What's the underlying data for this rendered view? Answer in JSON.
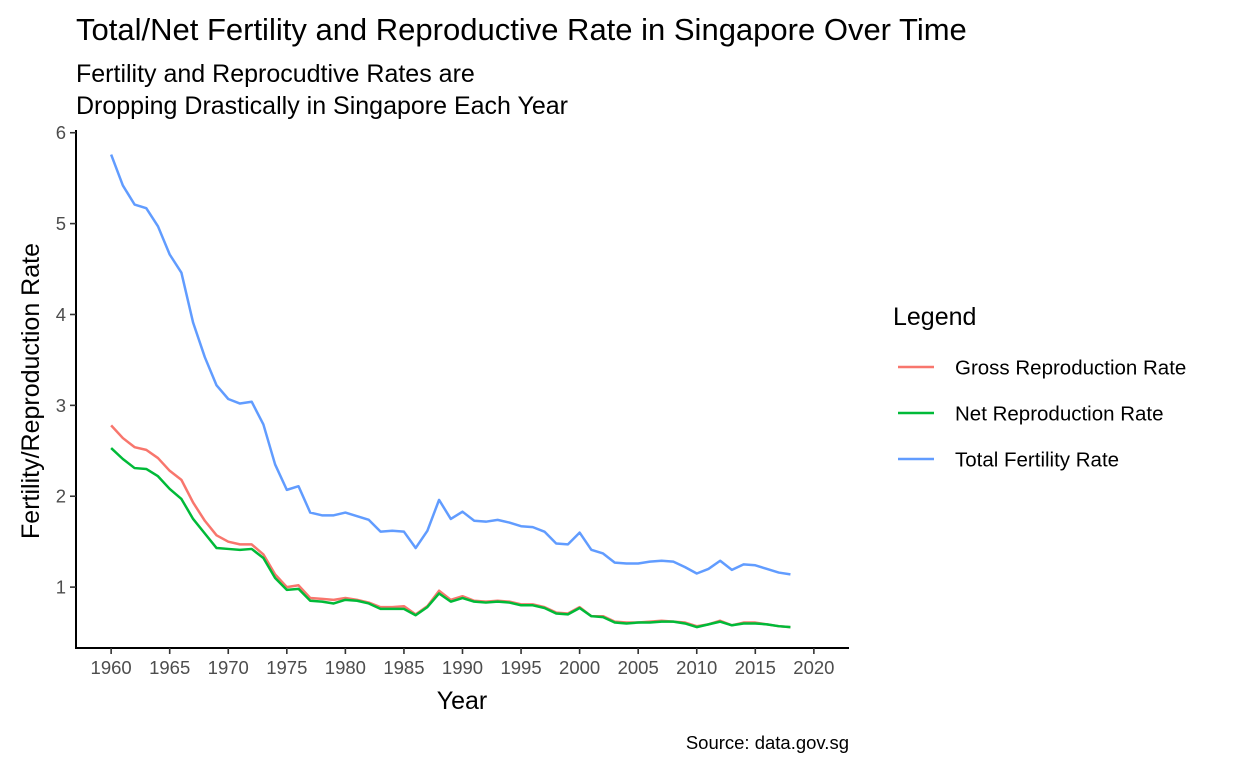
{
  "chart_data": {
    "type": "line",
    "title": "Total/Net Fertility and Reproductive Rate in Singapore Over Time",
    "subtitle": [
      "Fertility and Reprocudtive Rates are",
      "Dropping Drastically in Singapore Each Year"
    ],
    "xlabel": "Year",
    "ylabel": "Fertility/Reproduction Rate",
    "caption": "Source: data.gov.sg",
    "legend_title": "Legend",
    "legend_position": "right",
    "grid": false,
    "xlim": [
      1957,
      2023
    ],
    "ylim": [
      0.33,
      6.03
    ],
    "x_ticks": [
      1960,
      1965,
      1970,
      1975,
      1980,
      1985,
      1990,
      1995,
      2000,
      2005,
      2010,
      2015,
      2020
    ],
    "x_tick_labels": [
      "1960",
      "1965",
      "1970",
      "1975",
      "1980",
      "1985",
      "1990",
      "1995",
      "2000",
      "2005",
      "2010",
      "2015",
      "2020"
    ],
    "y_ticks": [
      1,
      2,
      3,
      4,
      5,
      6
    ],
    "y_tick_labels": [
      "1",
      "2",
      "3",
      "4",
      "5",
      "6"
    ],
    "x": [
      1960,
      1961,
      1962,
      1963,
      1964,
      1965,
      1966,
      1967,
      1968,
      1969,
      1970,
      1971,
      1972,
      1973,
      1974,
      1975,
      1976,
      1977,
      1978,
      1979,
      1980,
      1981,
      1982,
      1983,
      1984,
      1985,
      1986,
      1987,
      1988,
      1989,
      1990,
      1991,
      1992,
      1993,
      1994,
      1995,
      1996,
      1997,
      1998,
      1999,
      2000,
      2001,
      2002,
      2003,
      2004,
      2005,
      2006,
      2007,
      2008,
      2009,
      2010,
      2011,
      2012,
      2013,
      2014,
      2015,
      2016,
      2017,
      2018
    ],
    "series": [
      {
        "name": "Gross Reproduction Rate",
        "color": "#F8766D",
        "values": [
          2.78,
          2.64,
          2.54,
          2.51,
          2.42,
          2.28,
          2.18,
          1.93,
          1.73,
          1.57,
          1.5,
          1.47,
          1.47,
          1.36,
          1.14,
          1.0,
          1.02,
          0.88,
          0.87,
          0.86,
          0.88,
          0.86,
          0.83,
          0.78,
          0.78,
          0.79,
          0.7,
          0.79,
          0.96,
          0.86,
          0.9,
          0.85,
          0.84,
          0.85,
          0.84,
          0.81,
          0.81,
          0.78,
          0.72,
          0.71,
          0.78,
          0.68,
          0.68,
          0.62,
          0.61,
          0.61,
          0.62,
          0.63,
          0.62,
          0.61,
          0.57,
          0.59,
          0.63,
          0.58,
          0.61,
          0.61,
          0.59,
          0.57,
          0.56
        ]
      },
      {
        "name": "Net Reproduction Rate",
        "color": "#00BA38",
        "values": [
          2.53,
          2.41,
          2.31,
          2.3,
          2.22,
          2.08,
          1.97,
          1.75,
          1.59,
          1.43,
          1.42,
          1.41,
          1.42,
          1.32,
          1.1,
          0.97,
          0.98,
          0.85,
          0.84,
          0.82,
          0.86,
          0.85,
          0.82,
          0.76,
          0.76,
          0.76,
          0.69,
          0.78,
          0.93,
          0.84,
          0.88,
          0.84,
          0.83,
          0.84,
          0.83,
          0.8,
          0.8,
          0.77,
          0.71,
          0.7,
          0.77,
          0.68,
          0.67,
          0.61,
          0.6,
          0.61,
          0.61,
          0.62,
          0.62,
          0.6,
          0.56,
          0.59,
          0.62,
          0.58,
          0.6,
          0.6,
          0.59,
          0.57,
          0.56
        ]
      },
      {
        "name": "Total Fertility Rate",
        "color": "#619CFF",
        "values": [
          5.76,
          5.42,
          5.21,
          5.17,
          4.97,
          4.66,
          4.46,
          3.91,
          3.53,
          3.22,
          3.07,
          3.02,
          3.04,
          2.79,
          2.35,
          2.07,
          2.11,
          1.82,
          1.79,
          1.79,
          1.82,
          1.78,
          1.74,
          1.61,
          1.62,
          1.61,
          1.43,
          1.62,
          1.96,
          1.75,
          1.83,
          1.73,
          1.72,
          1.74,
          1.71,
          1.67,
          1.66,
          1.61,
          1.48,
          1.47,
          1.6,
          1.41,
          1.37,
          1.27,
          1.26,
          1.26,
          1.28,
          1.29,
          1.28,
          1.22,
          1.15,
          1.2,
          1.29,
          1.19,
          1.25,
          1.24,
          1.2,
          1.16,
          1.14
        ]
      }
    ]
  }
}
